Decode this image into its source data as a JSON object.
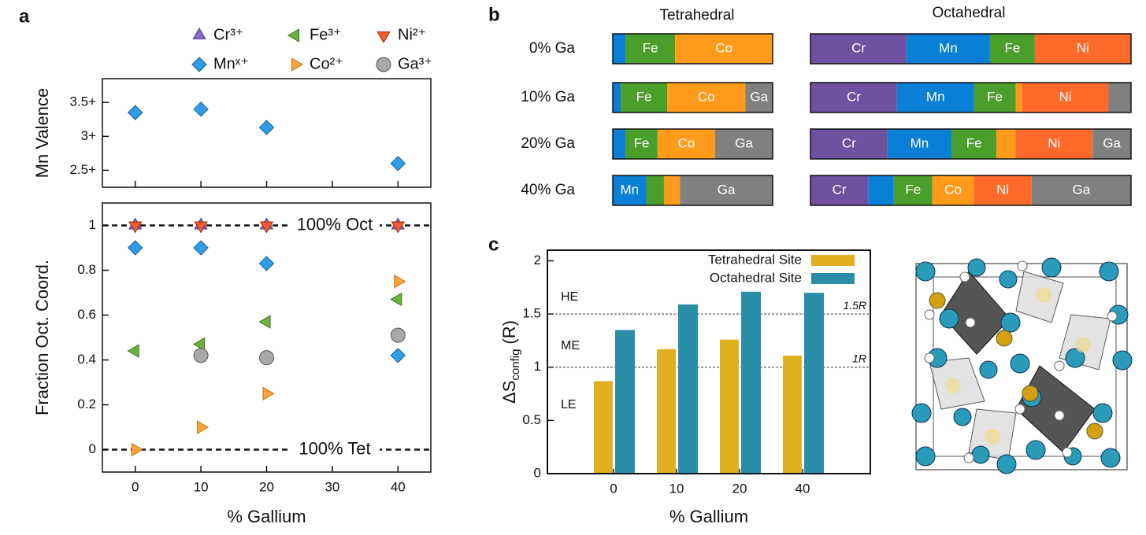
{
  "chart_data": [
    {
      "panel": "a",
      "type": "scatter",
      "y_label": "Mn Valence",
      "x": [
        0,
        10,
        20,
        40
      ],
      "series": [
        {
          "color": "#2f9ee8",
          "marker": "diamond",
          "values": [
            3.35,
            3.4,
            3.13,
            2.6
          ]
        }
      ],
      "xlim": [
        -5,
        45
      ],
      "xticks": [
        0,
        10,
        20,
        30,
        40
      ],
      "show_x_tick_labels": false,
      "ylim": [
        2.25,
        3.85
      ],
      "yticks": [
        {
          "value": 2.5,
          "label": "2.5+"
        },
        {
          "value": 3,
          "label": "3+"
        },
        {
          "value": 3.5,
          "label": "3.5+"
        }
      ]
    },
    {
      "type": "scatter",
      "x_label": "% Gallium",
      "y_label": "Fraction Oct. Coord.",
      "x": [
        0,
        10,
        20,
        40
      ],
      "series": [
        {
          "name": "Cr³⁺",
          "color": "#8a6fc8",
          "marker": "triangle-up",
          "values": [
            1,
            1,
            1,
            1
          ]
        },
        {
          "name": "Mnˣ⁺",
          "color": "#2f9ee8",
          "marker": "diamond",
          "values": [
            0.9,
            0.9,
            0.83,
            0.42
          ]
        },
        {
          "name": "Fe³⁺",
          "color": "#6cb33f",
          "marker": "triangle-left",
          "values": [
            0.44,
            0.47,
            0.57,
            0.67
          ]
        },
        {
          "name": "Co²⁺",
          "color": "#ffa53a",
          "marker": "triangle-right",
          "values": [
            0,
            0.1,
            0.25,
            0.75
          ]
        },
        {
          "name": "Ni²⁺",
          "color": "#f25a30",
          "marker": "triangle-down",
          "values": [
            1,
            1,
            1,
            1
          ]
        },
        {
          "name": "Ga³⁺",
          "color": "#a8a8a8",
          "marker": "circle",
          "values": [
            null,
            0.42,
            0.41,
            0.51
          ]
        }
      ],
      "xlim": [
        -5,
        45
      ],
      "xticks": [
        0,
        10,
        20,
        30,
        40
      ],
      "ylim": [
        -0.1,
        1.1
      ],
      "yticks": [
        0,
        0.2,
        0.4,
        0.6,
        0.8,
        1
      ],
      "reference_lines": [
        {
          "value": 1,
          "label": "100% Oct"
        },
        {
          "value": 0,
          "label": "100% Tet"
        }
      ]
    },
    {
      "panel": "b",
      "type": "stacked_bar",
      "categories": [
        "0% Ga",
        "10% Ga",
        "20% Ga",
        "40% Ga"
      ],
      "groups": [
        {
          "title": "Tetrahedral",
          "series": [
            {
              "name": "Mn",
              "color": "#0a7fd6",
              "values": [
                0.08,
                0.05,
                0.08,
                0.21
              ]
            },
            {
              "name": "Fe",
              "color": "#4a9e2a",
              "values": [
                0.31,
                0.29,
                0.2,
                0.11
              ]
            },
            {
              "name": "Co",
              "color": "#ff9a1a",
              "values": [
                0.61,
                0.49,
                0.36,
                0.1
              ]
            },
            {
              "name": "Ga",
              "color": "#808080",
              "values": [
                0,
                0.17,
                0.36,
                0.58
              ]
            }
          ]
        },
        {
          "title": "Octahedral",
          "series": [
            {
              "name": "Cr",
              "color": "#7050a0",
              "values": [
                0.3,
                0.27,
                0.24,
                0.18
              ]
            },
            {
              "name": "Mn",
              "color": "#0a7fd6",
              "values": [
                0.26,
                0.24,
                0.2,
                0.08
              ]
            },
            {
              "name": "Fe",
              "color": "#4a9e2a",
              "values": [
                0.14,
                0.13,
                0.14,
                0.12
              ]
            },
            {
              "name": "Co",
              "color": "#ff9a1a",
              "values": [
                0,
                0.02,
                0.06,
                0.13
              ]
            },
            {
              "name": "Ni",
              "color": "#ff6a2a",
              "values": [
                0.3,
                0.27,
                0.24,
                0.18
              ]
            },
            {
              "name": "Ga",
              "color": "#808080",
              "values": [
                0,
                0.07,
                0.12,
                0.31
              ]
            }
          ]
        }
      ]
    },
    {
      "panel": "c",
      "type": "bar",
      "x_label": "% Gallium",
      "y_label": "ΔS",
      "y_label_sub": "config",
      "y_label_unit": "(R)",
      "categories": [
        "0",
        "10",
        "20",
        "40"
      ],
      "series": [
        {
          "name": "Tetrahedral Site",
          "color": "#e0b020",
          "values": [
            0.87,
            1.17,
            1.26,
            1.11
          ]
        },
        {
          "name": "Octahedral Site",
          "color": "#2b8ea8",
          "values": [
            1.35,
            1.59,
            1.71,
            1.7
          ]
        }
      ],
      "ylim": [
        0,
        2.1
      ],
      "yticks": [
        0,
        0.5,
        1,
        1.5,
        2
      ],
      "reference_lines": [
        {
          "value": 1.5,
          "label": "1.5R"
        },
        {
          "value": 1,
          "label": "1R"
        }
      ],
      "annotations": [
        "HE",
        "ME",
        "LE"
      ]
    }
  ]
}
